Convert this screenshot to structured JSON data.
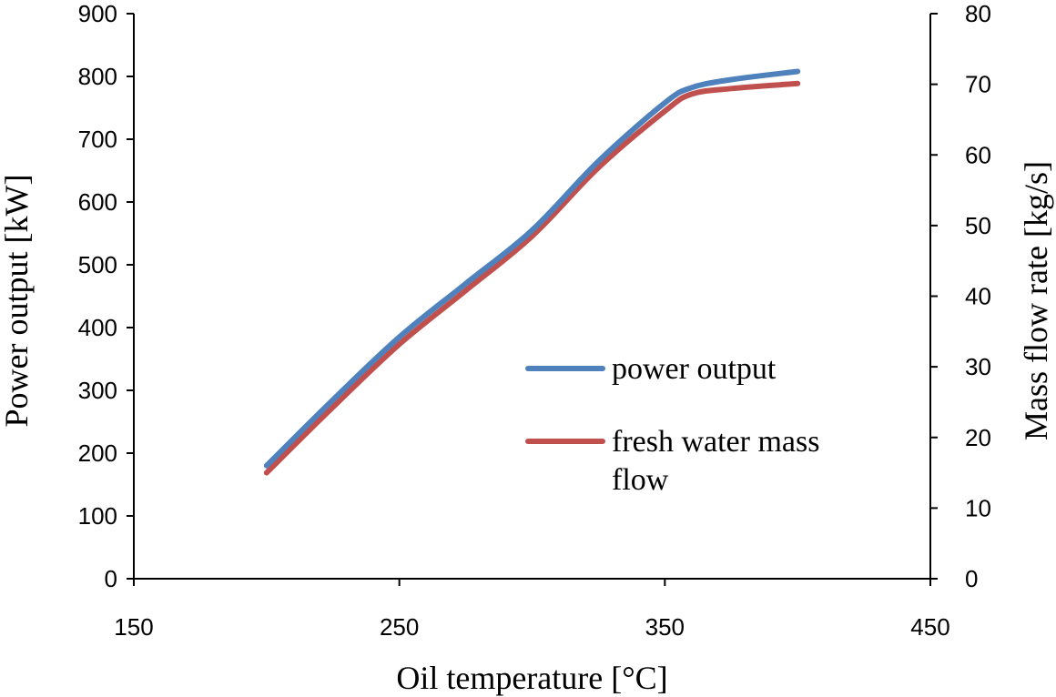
{
  "chart_data": {
    "type": "line",
    "xlabel": "Oil temperature [°C]",
    "ylabel": "Power output  [kW]",
    "y2label": "Mass flow rate  [kg/s]",
    "xlim": [
      150,
      450
    ],
    "xticks": [
      150,
      250,
      350,
      450
    ],
    "ylim": [
      0,
      900
    ],
    "yticks": [
      0,
      100,
      200,
      300,
      400,
      500,
      600,
      700,
      800,
      900
    ],
    "y2lim": [
      0,
      80
    ],
    "y2ticks": [
      0,
      10,
      20,
      30,
      40,
      50,
      60,
      70,
      80
    ],
    "grid": false,
    "legend_position": "center-right",
    "series": [
      {
        "name": "power output",
        "axis": "left",
        "color": "#4F81BD",
        "x": [
          200,
          225,
          250,
          275,
          300,
          325,
          350,
          360,
          375,
          400
        ],
        "values": [
          180,
          285,
          385,
          470,
          555,
          665,
          758,
          782,
          795,
          808
        ]
      },
      {
        "name": "fresh water mass flow",
        "axis": "right",
        "color": "#C0504D",
        "x": [
          200,
          225,
          250,
          275,
          300,
          325,
          350,
          360,
          375,
          400
        ],
        "values": [
          15,
          24.3,
          33.2,
          40.8,
          48.5,
          58.2,
          66.2,
          68.6,
          69.4,
          70.1
        ]
      }
    ]
  }
}
